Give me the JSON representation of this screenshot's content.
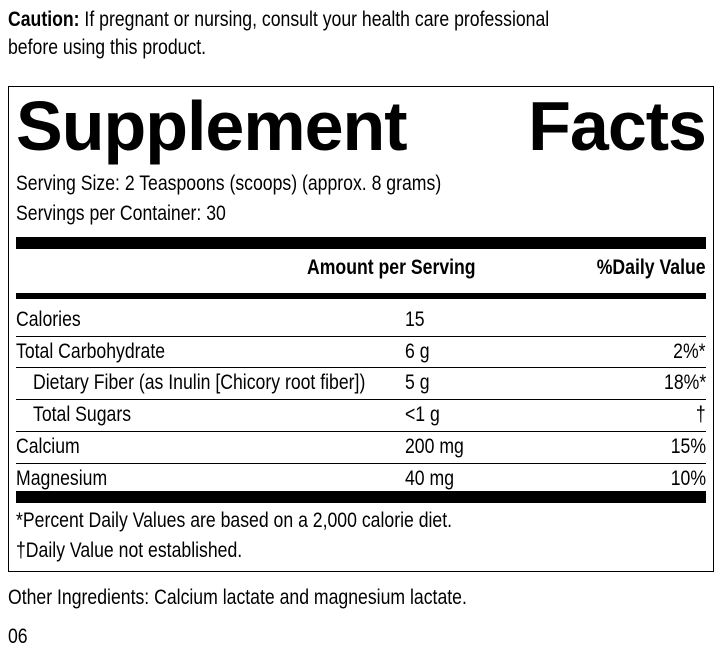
{
  "caution": {
    "label": "Caution:",
    "text": " If pregnant or nursing, consult your health care professional",
    "text2": "before using this product."
  },
  "title": {
    "word1": "Supplement",
    "word2": "Facts"
  },
  "serving_size": "Serving Size: 2 Teaspoons (scoops) (approx. 8 grams)",
  "servings_per_container": "Servings per Container: 30",
  "headers": {
    "amount": "Amount per Serving",
    "dv": "%Daily Value"
  },
  "rows": [
    {
      "name": "Calories",
      "amount": "15",
      "dv": ""
    },
    {
      "name": "Total Carbohydrate",
      "amount": "6 g",
      "dv": "2%*"
    },
    {
      "name": "Dietary Fiber (as Inulin [Chicory root fiber])",
      "amount": "5 g",
      "dv": "18%*"
    },
    {
      "name": "Total Sugars",
      "amount": "<1 g",
      "dv": "†"
    },
    {
      "name": "Calcium",
      "amount": "200 mg",
      "dv": "15%"
    },
    {
      "name": "Magnesium",
      "amount": "40 mg",
      "dv": "10%"
    }
  ],
  "footnotes": [
    "*Percent Daily Values are based on a 2,000 calorie diet.",
    "†Daily Value not established."
  ],
  "other_ingredients": "Other Ingredients: Calcium lactate and magnesium lactate.",
  "code": "06"
}
